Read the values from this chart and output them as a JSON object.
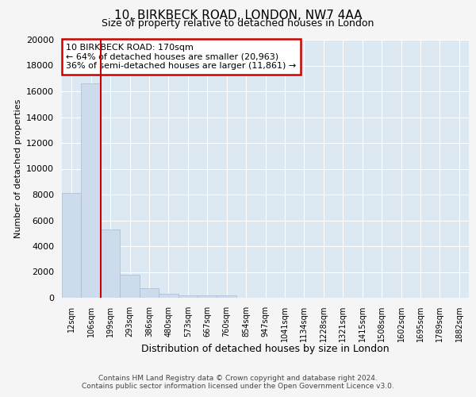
{
  "title1": "10, BIRKBECK ROAD, LONDON, NW7 4AA",
  "title2": "Size of property relative to detached houses in London",
  "xlabel": "Distribution of detached houses by size in London",
  "ylabel": "Number of detached properties",
  "categories": [
    "12sqm",
    "106sqm",
    "199sqm",
    "293sqm",
    "386sqm",
    "480sqm",
    "573sqm",
    "667sqm",
    "760sqm",
    "854sqm",
    "947sqm",
    "1041sqm",
    "1134sqm",
    "1228sqm",
    "1321sqm",
    "1415sqm",
    "1508sqm",
    "1602sqm",
    "1695sqm",
    "1789sqm",
    "1882sqm"
  ],
  "values": [
    8100,
    16600,
    5300,
    1800,
    750,
    280,
    200,
    200,
    200,
    0,
    0,
    0,
    0,
    0,
    0,
    0,
    0,
    0,
    0,
    0,
    0
  ],
  "bar_color": "#ccdcec",
  "bar_edge_color": "#aabbcc",
  "red_line_x": 1.5,
  "annotation_box_text": "10 BIRKBECK ROAD: 170sqm\n← 64% of detached houses are smaller (20,963)\n36% of semi-detached houses are larger (11,861) →",
  "ylim": [
    0,
    20000
  ],
  "yticks": [
    0,
    2000,
    4000,
    6000,
    8000,
    10000,
    12000,
    14000,
    16000,
    18000,
    20000
  ],
  "bg_color": "#f5f5f5",
  "plot_bg_color": "#dce8f2",
  "grid_color": "#ffffff",
  "footer1": "Contains HM Land Registry data © Crown copyright and database right 2024.",
  "footer2": "Contains public sector information licensed under the Open Government Licence v3.0."
}
